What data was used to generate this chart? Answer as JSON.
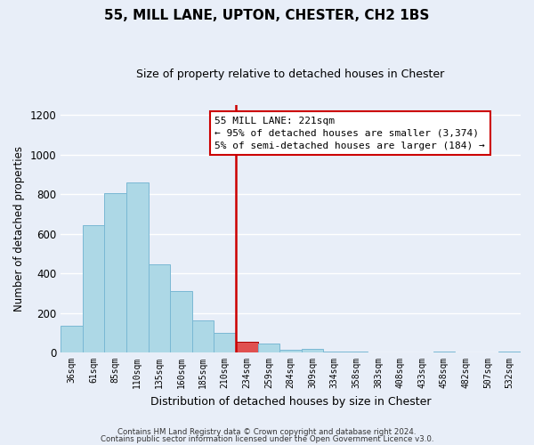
{
  "title": "55, MILL LANE, UPTON, CHESTER, CH2 1BS",
  "subtitle": "Size of property relative to detached houses in Chester",
  "xlabel": "Distribution of detached houses by size in Chester",
  "ylabel": "Number of detached properties",
  "bin_labels": [
    "36sqm",
    "61sqm",
    "85sqm",
    "110sqm",
    "135sqm",
    "160sqm",
    "185sqm",
    "210sqm",
    "234sqm",
    "259sqm",
    "284sqm",
    "309sqm",
    "334sqm",
    "358sqm",
    "383sqm",
    "408sqm",
    "433sqm",
    "458sqm",
    "482sqm",
    "507sqm",
    "532sqm"
  ],
  "bar_heights": [
    135,
    645,
    805,
    860,
    445,
    310,
    160,
    100,
    55,
    45,
    15,
    20,
    5,
    5,
    0,
    0,
    0,
    5,
    0,
    0,
    5
  ],
  "bar_color": "#add8e6",
  "bar_edge_color": "#7ab8d4",
  "highlight_bar_index": 8,
  "highlight_bar_color": "#e05050",
  "highlight_bar_edge": "#aa0000",
  "vline_color": "#cc0000",
  "ylim": [
    0,
    1250
  ],
  "yticks": [
    0,
    200,
    400,
    600,
    800,
    1000,
    1200
  ],
  "annotation_lines": [
    "55 MILL LANE: 221sqm",
    "← 95% of detached houses are smaller (3,374)",
    "5% of semi-detached houses are larger (184) →"
  ],
  "footnote1": "Contains HM Land Registry data © Crown copyright and database right 2024.",
  "footnote2": "Contains public sector information licensed under the Open Government Licence v3.0.",
  "background_color": "#e8eef8",
  "plot_bg_color": "#e8eef8",
  "grid_color": "#ffffff"
}
